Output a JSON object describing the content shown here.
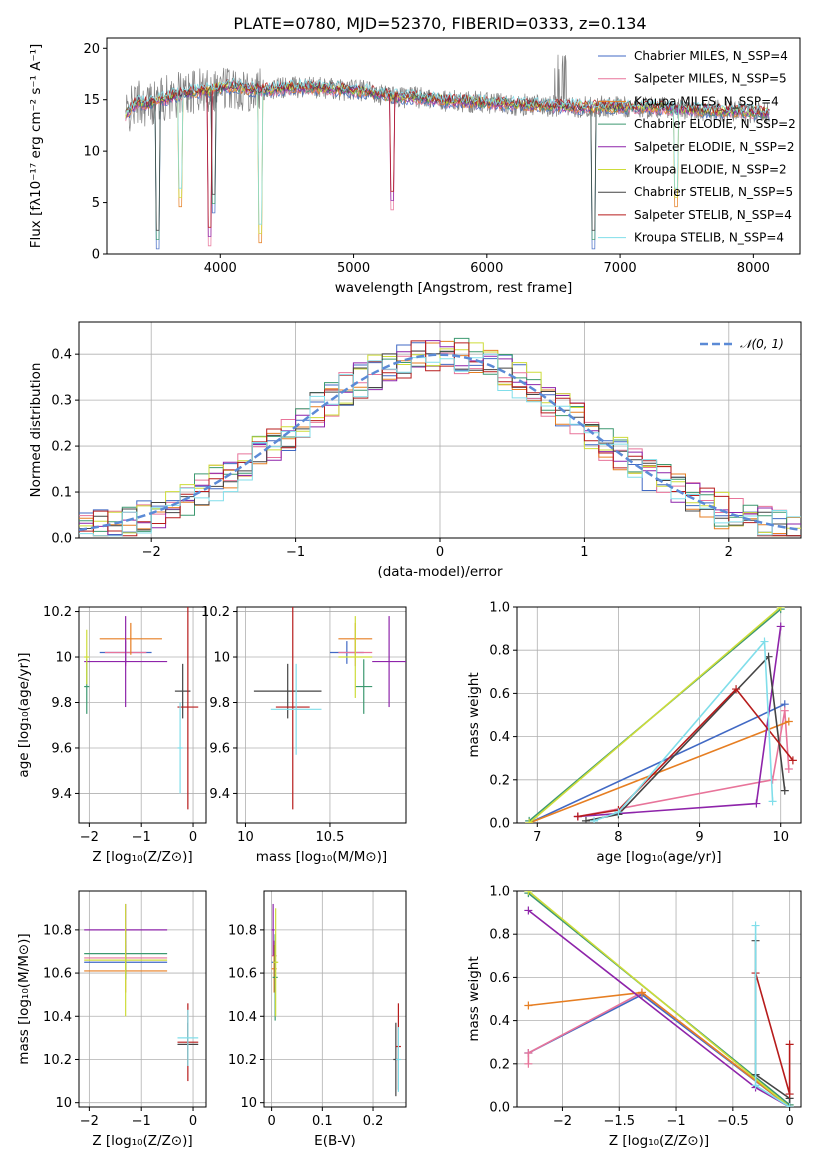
{
  "figure": {
    "title": "PLATE=0780, MJD=52370, FIBERID=0333, z=0.134"
  },
  "chart_data": [
    {
      "type": "line",
      "name": "spectrum",
      "xlabel": "wavelength [Angstrom, rest frame]",
      "ylabel": "Flux [fλ10⁻¹⁷ erg cm⁻² s⁻¹ A⁻¹]",
      "xlim": [
        3150,
        8350
      ],
      "ylim": [
        0,
        21
      ],
      "xticks": [
        4000,
        5000,
        6000,
        7000,
        8000
      ],
      "yticks": [
        0,
        5,
        10,
        15,
        20
      ],
      "grid": false,
      "legend_position": "right",
      "observed_color": "#808080",
      "continuum_points": [
        [
          3290,
          13.5
        ],
        [
          3380,
          14.8
        ],
        [
          3450,
          14.6
        ],
        [
          3560,
          15.0
        ],
        [
          3650,
          15.4
        ],
        [
          3760,
          15.7
        ],
        [
          3900,
          15.9
        ],
        [
          4000,
          16.2
        ],
        [
          4100,
          16.3
        ],
        [
          4200,
          16.1
        ],
        [
          4300,
          15.9
        ],
        [
          4500,
          16.2
        ],
        [
          4700,
          16.2
        ],
        [
          4900,
          16.0
        ],
        [
          5100,
          15.8
        ],
        [
          5300,
          15.3
        ],
        [
          5500,
          15.2
        ],
        [
          5700,
          14.9
        ],
        [
          5900,
          14.8
        ],
        [
          6100,
          14.6
        ],
        [
          6300,
          14.5
        ],
        [
          6500,
          14.4
        ],
        [
          6700,
          14.3
        ],
        [
          6900,
          14.3
        ],
        [
          7100,
          14.3
        ],
        [
          7300,
          14.2
        ],
        [
          7500,
          14.1
        ],
        [
          7700,
          13.9
        ],
        [
          7900,
          13.9
        ],
        [
          8100,
          13.7
        ]
      ],
      "series": [
        {
          "name": "Chabrier MILES, N_SSP=4",
          "color": "#4169c4"
        },
        {
          "name": "Salpeter MILES, N_SSP=5",
          "color": "#e8749a"
        },
        {
          "name": "Kroupa MILES, N_SSP=4",
          "color": "#e67e22"
        },
        {
          "name": "Chabrier ELODIE, N_SSP=2",
          "color": "#3d9970"
        },
        {
          "name": "Salpeter ELODIE, N_SSP=2",
          "color": "#8e24aa"
        },
        {
          "name": "Kroupa ELODIE, N_SSP=2",
          "color": "#cddc39"
        },
        {
          "name": "Chabrier STELIB, N_SSP=5",
          "color": "#444444"
        },
        {
          "name": "Salpeter STELIB, N_SSP=4",
          "color": "#b71c1c"
        },
        {
          "name": "Kroupa STELIB, N_SSP=4",
          "color": "#80deea"
        }
      ]
    },
    {
      "type": "bar",
      "name": "residual-histogram",
      "xlabel": "(data-model)/error",
      "ylabel": "Normed distribution",
      "xlim": [
        -2.5,
        2.5
      ],
      "ylim": [
        0,
        0.47
      ],
      "xticks": [
        -2,
        -1,
        0,
        1,
        2
      ],
      "yticks": [
        0.0,
        0.1,
        0.2,
        0.3,
        0.4
      ],
      "grid": true,
      "legend": "𝒩(0, 1)",
      "legend_position": "top-right",
      "gaussian": {
        "mean": 0,
        "sigma": 1,
        "color": "#5b8ad6"
      },
      "bin_width": 0.1
    },
    {
      "type": "scatter",
      "name": "age-vs-Z",
      "xlabel": "Z [log₁₀(Z/Z⊙)]",
      "ylabel": "age  [log₁₀(age/yr)]",
      "xlim": [
        -2.2,
        0.25
      ],
      "ylim": [
        9.27,
        10.22
      ],
      "xticks": [
        -2,
        -1,
        0
      ],
      "yticks": [
        9.4,
        9.6,
        9.8,
        10.0,
        10.2
      ],
      "grid": true,
      "points": [
        {
          "color": "#4169c4",
          "x": -1.3,
          "xerr": 0.5,
          "y": 10.02,
          "yerr": 0.05
        },
        {
          "color": "#e8749a",
          "x": -1.3,
          "xerr": 0.4,
          "y": 10.02,
          "yerr": 0.06
        },
        {
          "color": "#e67e22",
          "x": -1.2,
          "xerr": 0.6,
          "y": 10.08,
          "yerr": 0.07
        },
        {
          "color": "#3d9970",
          "x": -2.05,
          "xerr": 0.05,
          "y": 9.87,
          "yerr": 0.12
        },
        {
          "color": "#8e24aa",
          "x": -1.3,
          "xerr": 0.8,
          "y": 9.98,
          "yerr": 0.2
        },
        {
          "color": "#cddc39",
          "x": -2.05,
          "xerr": 0.05,
          "y": 10.0,
          "yerr": 0.12
        },
        {
          "color": "#444444",
          "x": -0.2,
          "xerr": 0.15,
          "y": 9.85,
          "yerr": 0.12
        },
        {
          "color": "#b71c1c",
          "x": -0.1,
          "xerr": 0.2,
          "y": 9.78,
          "yerr": 0.45
        },
        {
          "color": "#80deea",
          "x": -0.25,
          "xerr": 0.05,
          "y": 9.6,
          "yerr": 0.2
        }
      ]
    },
    {
      "type": "scatter",
      "name": "age-vs-mass",
      "xlabel": "mass [log₁₀(M/M⊙)]",
      "ylabel": "",
      "xlim": [
        9.95,
        10.95
      ],
      "ylim": [
        9.27,
        10.22
      ],
      "xticks": [
        10.0,
        10.5
      ],
      "yticks": [
        9.4,
        9.6,
        9.8,
        10.0,
        10.2
      ],
      "grid": true,
      "points": [
        {
          "color": "#4169c4",
          "x": 10.6,
          "xerr": 0.1,
          "y": 10.02,
          "yerr": 0.05
        },
        {
          "color": "#e8749a",
          "x": 10.65,
          "xerr": 0.1,
          "y": 10.02,
          "yerr": 0.06
        },
        {
          "color": "#e67e22",
          "x": 10.65,
          "xerr": 0.1,
          "y": 10.08,
          "yerr": 0.07
        },
        {
          "color": "#3d9970",
          "x": 10.7,
          "xerr": 0.05,
          "y": 9.87,
          "yerr": 0.12
        },
        {
          "color": "#8e24aa",
          "x": 10.85,
          "xerr": 0.1,
          "y": 9.98,
          "yerr": 0.2
        },
        {
          "color": "#cddc39",
          "x": 10.65,
          "xerr": 0.1,
          "y": 10.0,
          "yerr": 0.18
        },
        {
          "color": "#444444",
          "x": 10.25,
          "xerr": 0.2,
          "y": 9.85,
          "yerr": 0.12
        },
        {
          "color": "#b71c1c",
          "x": 10.28,
          "xerr": 0.1,
          "y": 9.78,
          "yerr": 0.45
        },
        {
          "color": "#80deea",
          "x": 10.3,
          "xerr": 0.15,
          "y": 9.77,
          "yerr": 0.2
        }
      ]
    },
    {
      "type": "line",
      "name": "mass-weight-vs-age",
      "xlabel": "age  [log₁₀(age/yr)]",
      "ylabel": "mass weight",
      "xlim": [
        6.75,
        10.25
      ],
      "ylim": [
        0,
        1
      ],
      "xticks": [
        7,
        8,
        9,
        10
      ],
      "yticks": [
        0.0,
        0.2,
        0.4,
        0.6,
        0.8,
        1.0
      ],
      "grid": true,
      "series": [
        {
          "color": "#4169c4",
          "x": [
            6.9,
            10.05
          ],
          "y": [
            0.0,
            0.55
          ]
        },
        {
          "color": "#e8749a",
          "x": [
            7.5,
            9.9,
            10.05,
            10.1
          ],
          "y": [
            0.03,
            0.2,
            0.52,
            0.25
          ]
        },
        {
          "color": "#e67e22",
          "x": [
            6.9,
            10.1
          ],
          "y": [
            0.0,
            0.47
          ]
        },
        {
          "color": "#3d9970",
          "x": [
            6.9,
            10.0
          ],
          "y": [
            0.01,
            0.99
          ]
        },
        {
          "color": "#8e24aa",
          "x": [
            7.5,
            9.7,
            10.0
          ],
          "y": [
            0.03,
            0.09,
            0.91
          ]
        },
        {
          "color": "#cddc39",
          "x": [
            6.9,
            10.0
          ],
          "y": [
            0.0,
            1.0
          ]
        },
        {
          "color": "#444444",
          "x": [
            7.6,
            8.0,
            9.85,
            10.05
          ],
          "y": [
            0.01,
            0.04,
            0.77,
            0.15
          ]
        },
        {
          "color": "#b71c1c",
          "x": [
            7.5,
            8.0,
            9.45,
            10.15
          ],
          "y": [
            0.03,
            0.06,
            0.62,
            0.29
          ]
        },
        {
          "color": "#80deea",
          "x": [
            7.7,
            8.0,
            9.8,
            9.9
          ],
          "y": [
            0.01,
            0.05,
            0.84,
            0.1
          ]
        }
      ]
    },
    {
      "type": "scatter",
      "name": "mass-vs-Z",
      "xlabel": "Z [log₁₀(Z/Z⊙)]",
      "ylabel": "mass [log₁₀(M/M⊙)]",
      "xlim": [
        -2.2,
        0.25
      ],
      "ylim": [
        9.98,
        10.98
      ],
      "xticks": [
        -2,
        -1,
        0
      ],
      "yticks": [
        10.0,
        10.2,
        10.4,
        10.6,
        10.8
      ],
      "grid": true,
      "points": [
        {
          "color": "#4169c4",
          "x": -1.3,
          "xerr": 0.8,
          "y": 10.65,
          "yerr": 0.08
        },
        {
          "color": "#e8749a",
          "x": -1.3,
          "xerr": 0.8,
          "y": 10.67,
          "yerr": 0.08
        },
        {
          "color": "#e67e22",
          "x": -1.3,
          "xerr": 0.8,
          "y": 10.61,
          "yerr": 0.1
        },
        {
          "color": "#3d9970",
          "x": -1.3,
          "xerr": 0.8,
          "y": 10.69,
          "yerr": 0.12
        },
        {
          "color": "#8e24aa",
          "x": -1.3,
          "xerr": 0.8,
          "y": 10.8,
          "yerr": 0.12
        },
        {
          "color": "#cddc39",
          "x": -1.3,
          "xerr": 0.8,
          "y": 10.66,
          "yerr": 0.26
        },
        {
          "color": "#444444",
          "x": -0.1,
          "xerr": 0.2,
          "y": 10.27,
          "yerr": 0.1
        },
        {
          "color": "#b71c1c",
          "x": -0.1,
          "xerr": 0.2,
          "y": 10.28,
          "yerr": 0.18
        },
        {
          "color": "#80deea",
          "x": -0.1,
          "xerr": 0.2,
          "y": 10.3,
          "yerr": 0.13
        }
      ]
    },
    {
      "type": "scatter",
      "name": "mass-vs-ebv",
      "xlabel": "E(B-V)",
      "ylabel": "",
      "xlim": [
        -0.015,
        0.265
      ],
      "ylim": [
        9.98,
        10.98
      ],
      "xticks": [
        0.0,
        0.1,
        0.2
      ],
      "yticks": [
        10.0,
        10.2,
        10.4,
        10.6,
        10.8
      ],
      "grid": true,
      "points": [
        {
          "color": "#4169c4",
          "x": 0.005,
          "xerr": 0.005,
          "y": 10.65,
          "yerr": 0.07
        },
        {
          "color": "#e8749a",
          "x": 0.005,
          "xerr": 0.005,
          "y": 10.68,
          "yerr": 0.07
        },
        {
          "color": "#e67e22",
          "x": 0.005,
          "xerr": 0.005,
          "y": 10.62,
          "yerr": 0.11
        },
        {
          "color": "#3d9970",
          "x": 0.007,
          "xerr": 0.005,
          "y": 10.58,
          "yerr": 0.2
        },
        {
          "color": "#8e24aa",
          "x": 0.003,
          "xerr": 0.003,
          "y": 10.8,
          "yerr": 0.12
        },
        {
          "color": "#cddc39",
          "x": 0.008,
          "xerr": 0.005,
          "y": 10.65,
          "yerr": 0.25
        },
        {
          "color": "#444444",
          "x": 0.245,
          "xerr": 0.005,
          "y": 10.2,
          "yerr": 0.17
        },
        {
          "color": "#b71c1c",
          "x": 0.25,
          "xerr": 0.005,
          "y": 10.26,
          "yerr": 0.2
        },
        {
          "color": "#80deea",
          "x": 0.25,
          "xerr": 0.005,
          "y": 10.2,
          "yerr": 0.15
        }
      ]
    },
    {
      "type": "line",
      "name": "mass-weight-vs-Z",
      "xlabel": "Z [log₁₀(Z/Z⊙)]",
      "ylabel": "mass weight",
      "xlim": [
        -2.4,
        0.1
      ],
      "ylim": [
        0,
        1
      ],
      "xticks": [
        -2.0,
        -1.5,
        -1.0,
        -0.5,
        0.0
      ],
      "yticks": [
        0.0,
        0.2,
        0.4,
        0.6,
        0.8,
        1.0
      ],
      "grid": true,
      "series": [
        {
          "color": "#4169c4",
          "x": [
            -2.3,
            -1.3,
            0.0
          ],
          "y": [
            0.25,
            0.52,
            0.0
          ]
        },
        {
          "color": "#e8749a",
          "x": [
            -2.3,
            -2.3,
            -1.3,
            0.0
          ],
          "y": [
            0.2,
            0.25,
            0.53,
            0.0
          ]
        },
        {
          "color": "#e67e22",
          "x": [
            -2.3,
            -1.3,
            0.0
          ],
          "y": [
            0.47,
            0.53,
            0.0
          ]
        },
        {
          "color": "#3d9970",
          "x": [
            -2.3,
            0.0
          ],
          "y": [
            0.99,
            0.01
          ]
        },
        {
          "color": "#8e24aa",
          "x": [
            -2.3,
            -0.3,
            0.0
          ],
          "y": [
            0.91,
            0.09,
            0.0
          ]
        },
        {
          "color": "#cddc39",
          "x": [
            -2.3,
            0.0
          ],
          "y": [
            1.0,
            0.0
          ]
        },
        {
          "color": "#444444",
          "x": [
            -0.3,
            -0.3,
            0.0,
            0.0
          ],
          "y": [
            0.77,
            0.15,
            0.04,
            0.0
          ]
        },
        {
          "color": "#b71c1c",
          "x": [
            -0.3,
            0.0,
            0.0
          ],
          "y": [
            0.62,
            0.06,
            0.29
          ]
        },
        {
          "color": "#80deea",
          "x": [
            -0.3,
            -0.3,
            0.0
          ],
          "y": [
            0.84,
            0.1,
            0.0
          ]
        }
      ]
    }
  ]
}
